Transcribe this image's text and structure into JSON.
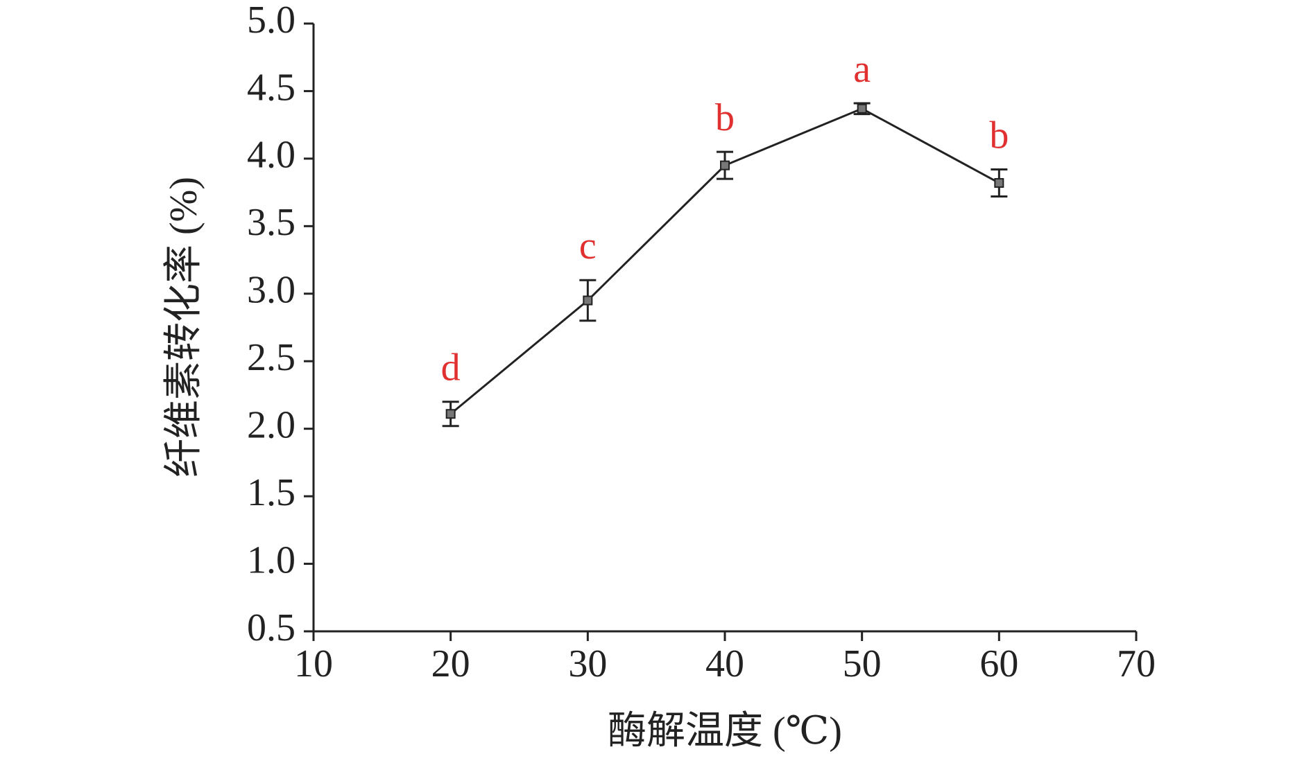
{
  "chart_data": {
    "type": "line",
    "x_label": "酶解温度 (℃)",
    "y_label": "纤维素转化率 (%)",
    "x": [
      20,
      30,
      40,
      50,
      60
    ],
    "series": [
      {
        "color": "#222222",
        "marker_color": "#777777",
        "values": [
          2.11,
          2.95,
          3.95,
          4.37,
          3.82
        ],
        "errors": [
          0.09,
          0.15,
          0.1,
          0.04,
          0.1
        ],
        "annotations": [
          "d",
          "c",
          "b",
          "a",
          "b"
        ],
        "annotation_color": "#e03030"
      }
    ],
    "xlim": [
      10,
      70
    ],
    "xticks": [
      10,
      20,
      30,
      40,
      50,
      60,
      70
    ],
    "ylim": [
      0.5,
      5
    ],
    "yticks": [
      0.5,
      {
        "value": 1,
        "label": "1.0"
      },
      1.5,
      {
        "value": 2,
        "label": "2.0"
      },
      2.5,
      {
        "value": 3,
        "label": "3.0"
      },
      3.5,
      {
        "value": 4,
        "label": "4.0"
      },
      4.5,
      {
        "value": 5,
        "label": "5.0"
      }
    ]
  }
}
